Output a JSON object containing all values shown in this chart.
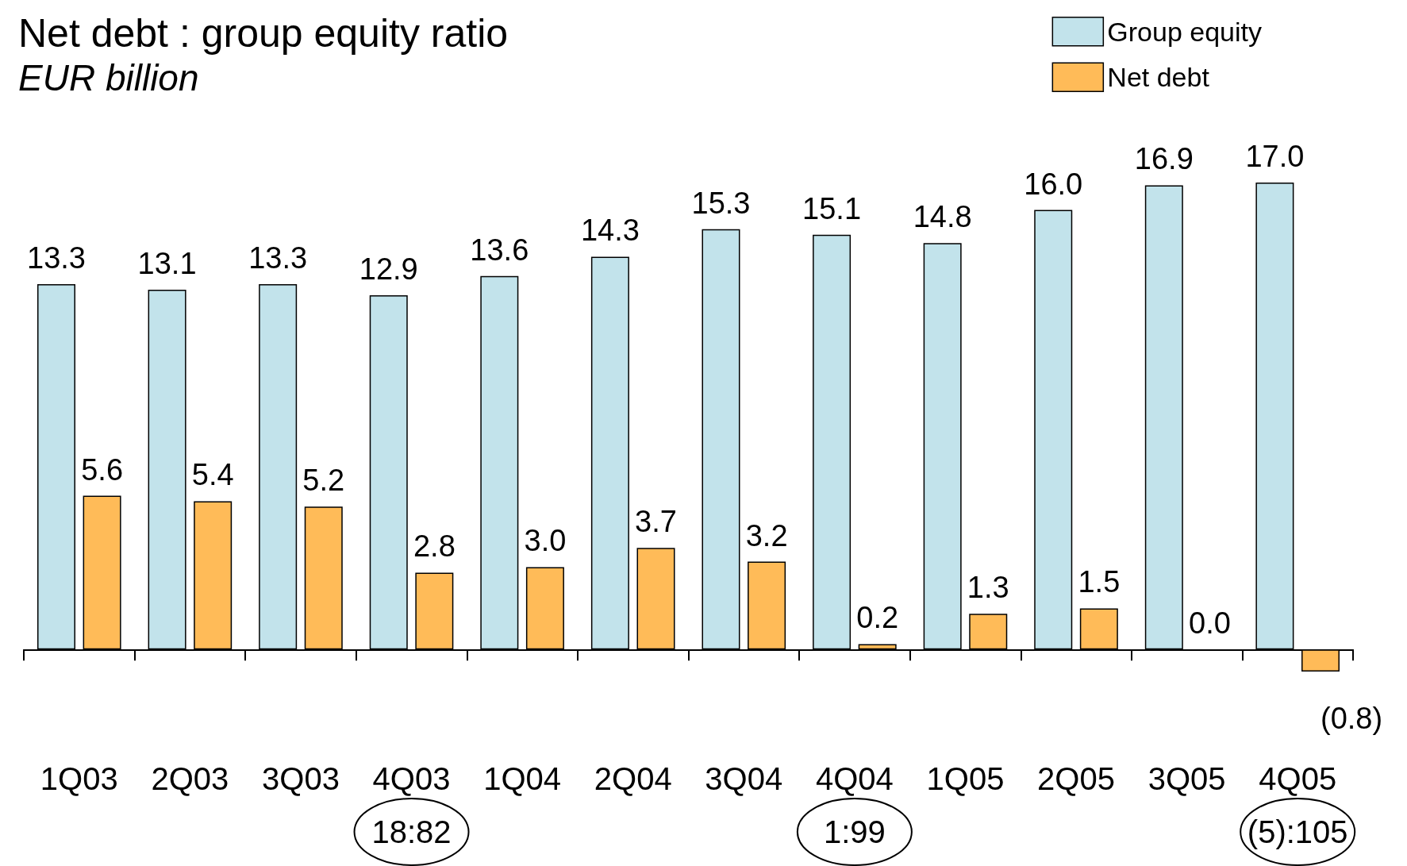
{
  "chart_data": {
    "type": "bar",
    "title": "Net debt : group equity ratio",
    "subtitle": "EUR billion",
    "categories": [
      "1Q03",
      "2Q03",
      "3Q03",
      "4Q03",
      "1Q04",
      "2Q04",
      "3Q04",
      "4Q04",
      "1Q05",
      "2Q05",
      "3Q05",
      "4Q05"
    ],
    "series": [
      {
        "name": "Group equity",
        "color": "#c2e3eb",
        "values": [
          13.3,
          13.1,
          13.3,
          12.9,
          13.6,
          14.3,
          15.3,
          15.1,
          14.8,
          16.0,
          16.9,
          17.0
        ],
        "value_labels": [
          "13.3",
          "13.1",
          "13.3",
          "12.9",
          "13.6",
          "14.3",
          "15.3",
          "15.1",
          "14.8",
          "16.0",
          "16.9",
          "17.0"
        ]
      },
      {
        "name": "Net debt",
        "color": "#ffbb58",
        "values": [
          5.6,
          5.4,
          5.2,
          2.8,
          3.0,
          3.7,
          3.2,
          0.2,
          1.3,
          1.5,
          0.0,
          -0.8
        ],
        "value_labels": [
          "5.6",
          "5.4",
          "5.2",
          "2.8",
          "3.0",
          "3.7",
          "3.2",
          "0.2",
          "1.3",
          "1.5",
          "0.0",
          "(0.8)"
        ]
      }
    ],
    "annotations": [
      "18:82",
      "1:99",
      "(5):105"
    ],
    "legend": "top right"
  }
}
